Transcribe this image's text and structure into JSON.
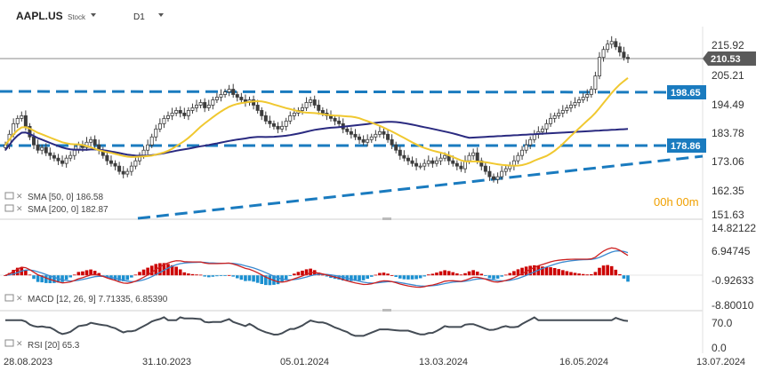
{
  "header": {
    "symbol": "AAPL.US",
    "type_label": "Stock",
    "timeframe": "D1"
  },
  "timer": "00h 00m",
  "price_tags": {
    "current": "210.53",
    "resistance": "198.65",
    "support": "178.86"
  },
  "legends": {
    "sma50": "SMA [50, 0]  186.58",
    "sma200": "SMA [200, 0]  182.87",
    "macd": "MACD [12, 26, 9]  7.71335,  6.85390",
    "rsi": "RSI [20]  65.3"
  },
  "colors": {
    "candle": "#3d3d3d",
    "sma50": "#f0c830",
    "sma200": "#2a2a80",
    "dashed": "#1a7bbf",
    "macd_pos": "#cc0000",
    "macd_neg": "#1a8fd0",
    "macd_line": "#cc2020",
    "signal_line": "#3a8ad0",
    "rsi_line": "#444c55",
    "tag_current": "#5a5a5a",
    "tag_levels": "#1a7bbf"
  },
  "chart_data": {
    "type": "candlestick",
    "price_axis_ticks": [
      "215.92",
      "205.21",
      "194.49",
      "183.78",
      "173.06",
      "162.35",
      "151.63"
    ],
    "macd_axis_ticks": [
      "14.82122",
      "6.94745",
      "-0.92633",
      "-8.80010"
    ],
    "rsi_axis_ticks": [
      "70.0",
      "0.0"
    ],
    "x_ticks": [
      "28.08.2023",
      "31.10.2023",
      "05.01.2024",
      "13.03.2024",
      "16.05.2024",
      "13.07.2024"
    ],
    "close_series": [
      178,
      182,
      186,
      188,
      189,
      185,
      181,
      178,
      176,
      177,
      175,
      174,
      173,
      172,
      171,
      173,
      174,
      176,
      178,
      177,
      179,
      180,
      178,
      176,
      174,
      172,
      171,
      170,
      168,
      167,
      168,
      170,
      172,
      174,
      176,
      178,
      181,
      184,
      186,
      188,
      189,
      190,
      191,
      190,
      189,
      191,
      192,
      193,
      194,
      192,
      193,
      195,
      196,
      197,
      198,
      199,
      197,
      196,
      195,
      194,
      195,
      193,
      191,
      189,
      187,
      186,
      185,
      184,
      185,
      187,
      189,
      190,
      191,
      192,
      194,
      195,
      193,
      191,
      190,
      189,
      188,
      187,
      186,
      184,
      183,
      182,
      181,
      180,
      179,
      180,
      181,
      182,
      183,
      182,
      180,
      178,
      176,
      174,
      173,
      172,
      171,
      170,
      170,
      171,
      172,
      171,
      172,
      173,
      174,
      172,
      171,
      170,
      169,
      172,
      174,
      175,
      172,
      170,
      168,
      166,
      165,
      166,
      168,
      169,
      170,
      172,
      174,
      176,
      178,
      180,
      182,
      183,
      184,
      186,
      188,
      189,
      190,
      191,
      192,
      193,
      194,
      195,
      196,
      197,
      199,
      204,
      211,
      214,
      216,
      217,
      215,
      213,
      211,
      210.5
    ],
    "sma50": {
      "last": 186.58
    },
    "sma200": {
      "last": 182.87
    },
    "levels": {
      "resistance": 198.65,
      "support": 178.86
    }
  }
}
